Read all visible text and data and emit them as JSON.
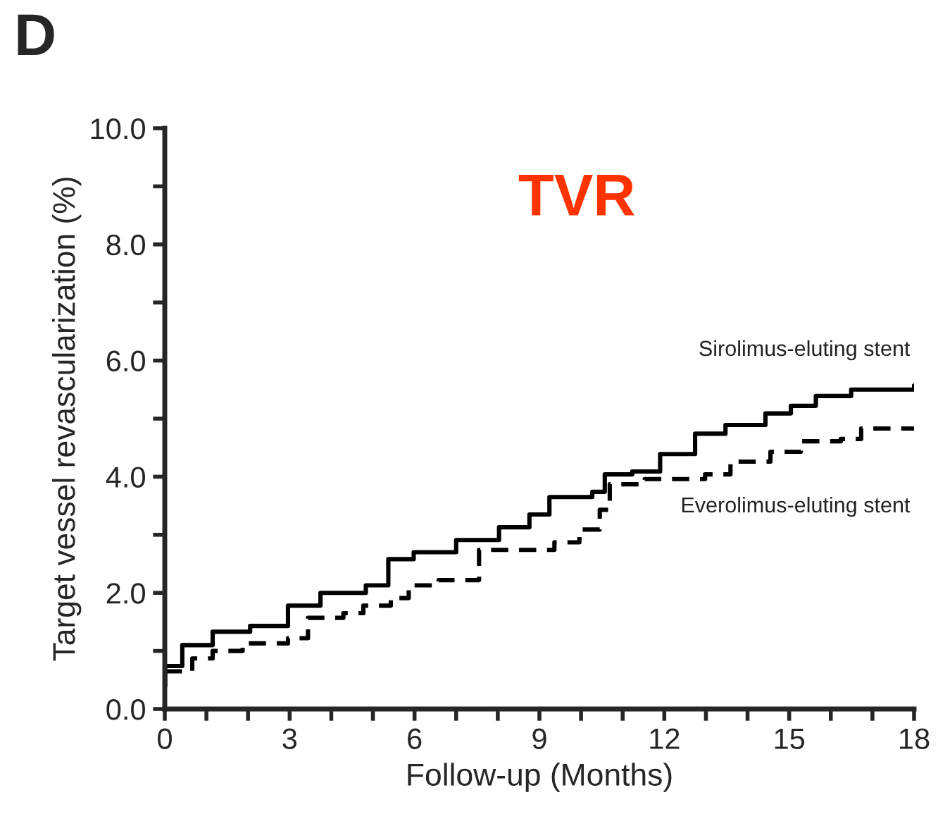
{
  "chart_data": {
    "type": "step",
    "title": "TVR",
    "xlabel": "Follow-up (Months)",
    "ylabel": "Target vessel revascularization (%)",
    "annotations": [
      "D"
    ],
    "xlim": [
      0,
      18
    ],
    "ylim": [
      0,
      10
    ],
    "xticks": [
      0,
      {
        "value": 1,
        "label": null
      },
      {
        "value": 2,
        "label": null
      },
      3,
      {
        "value": 4,
        "label": null
      },
      {
        "value": 5,
        "label": null
      },
      6,
      {
        "value": 7,
        "label": null
      },
      {
        "value": 8,
        "label": null
      },
      9,
      {
        "value": 10,
        "label": null
      },
      {
        "value": 11,
        "label": null
      },
      12,
      {
        "value": 13,
        "label": null
      },
      {
        "value": 14,
        "label": null
      },
      15,
      {
        "value": 16,
        "label": null
      },
      {
        "value": 17,
        "label": null
      },
      18
    ],
    "yticks": [
      {
        "value": 0,
        "label": "0.0"
      },
      {
        "value": 1,
        "label": null
      },
      {
        "value": 2,
        "label": "2.0"
      },
      {
        "value": 3,
        "label": null
      },
      {
        "value": 4,
        "label": "4.0"
      },
      {
        "value": 5,
        "label": null
      },
      {
        "value": 6,
        "label": "6.0"
      },
      {
        "value": 7,
        "label": null
      },
      {
        "value": 8,
        "label": "8.0"
      },
      {
        "value": 9,
        "label": null
      },
      {
        "value": 10,
        "label": "10.0"
      }
    ],
    "grid": false,
    "legend": false,
    "marker": "none",
    "series": [
      {
        "name": "Sirolimus-eluting stent",
        "color": "#000000",
        "line_style": "solid",
        "x": [
          0,
          0.01,
          0.42,
          1.15,
          2.05,
          2.96,
          3.74,
          4.83,
          5.37,
          5.98,
          7.0,
          8.03,
          8.76,
          9.24,
          10.27,
          10.57,
          11.23,
          11.9,
          12.74,
          13.47,
          14.43,
          15.04,
          15.64,
          16.49,
          18
        ],
        "values": [
          0.39,
          0.74,
          1.1,
          1.33,
          1.43,
          1.78,
          2.0,
          2.13,
          2.58,
          2.7,
          2.91,
          3.13,
          3.35,
          3.65,
          3.74,
          4.04,
          4.09,
          4.39,
          4.74,
          4.89,
          5.09,
          5.22,
          5.39,
          5.5,
          5.57
        ]
      },
      {
        "name": "Everolimus-eluting stent",
        "color": "#000000",
        "line_style": "dashed",
        "x": [
          0,
          0.66,
          1.15,
          1.87,
          2.96,
          3.44,
          4.29,
          4.77,
          5.43,
          5.86,
          6.58,
          7.55,
          9.36,
          9.96,
          10.45,
          10.69,
          11.53,
          12.98,
          13.59,
          14.55,
          15.28,
          16.24,
          16.73,
          18
        ],
        "values": [
          0.65,
          0.87,
          1.0,
          1.13,
          1.22,
          1.57,
          1.65,
          1.78,
          1.91,
          2.13,
          2.22,
          2.74,
          2.87,
          3.09,
          3.43,
          3.87,
          3.96,
          4.04,
          4.26,
          4.43,
          4.61,
          4.65,
          4.83,
          4.83
        ]
      }
    ]
  }
}
